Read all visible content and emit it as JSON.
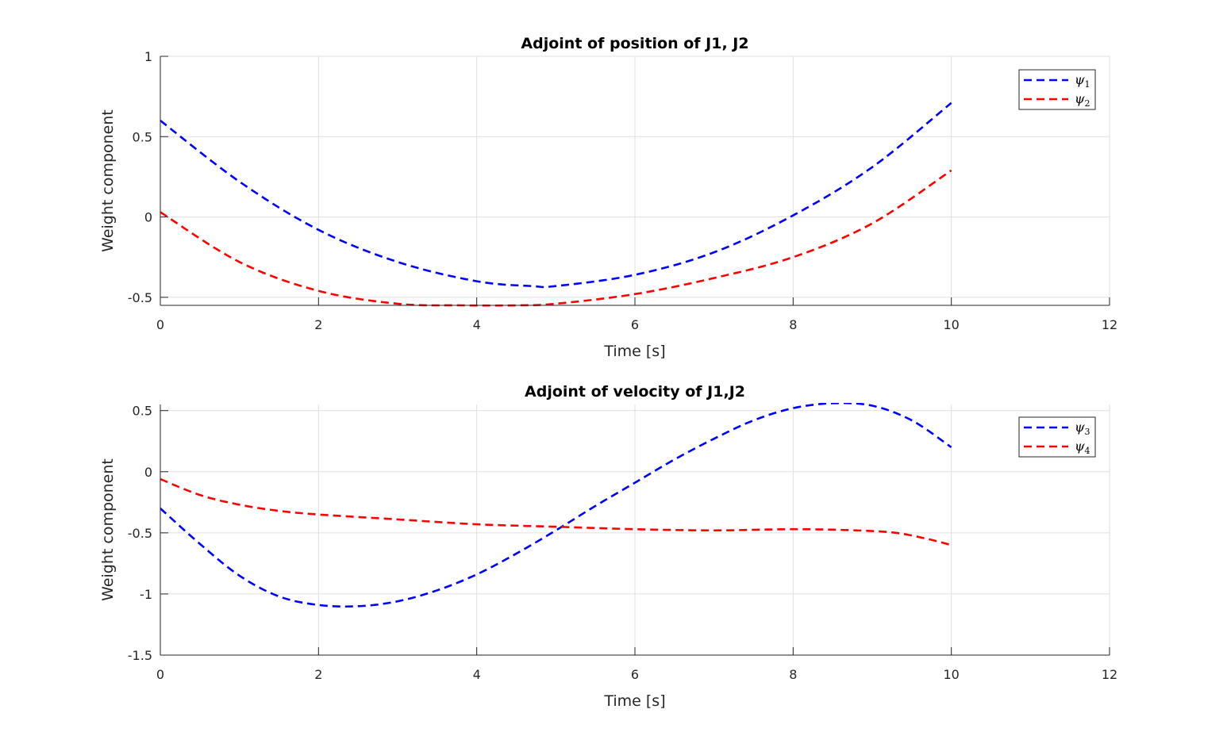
{
  "chart_data": [
    {
      "type": "line",
      "title": "Adjoint of position of J1, J2",
      "xlabel": "Time [s]",
      "ylabel": "Weight component",
      "xlim": [
        0,
        12
      ],
      "ylim": [
        -0.55,
        1
      ],
      "xticks": [
        0,
        2,
        4,
        6,
        8,
        10,
        12
      ],
      "yticks": [
        -0.5,
        0,
        0.5,
        1
      ],
      "xtick_labels": [
        "0",
        "2",
        "4",
        "6",
        "8",
        "10",
        "12"
      ],
      "ytick_labels": [
        "-0.5",
        "0",
        "0.5",
        "1"
      ],
      "grid": true,
      "legend_position": "top-right",
      "series": [
        {
          "name": "ψ1",
          "color": "#0000ff",
          "line_style": "dashed",
          "x": [
            0,
            1,
            2,
            3,
            4,
            4.7,
            5,
            6,
            7,
            8,
            9,
            10
          ],
          "y": [
            0.6,
            0.22,
            -0.08,
            -0.28,
            -0.4,
            -0.43,
            -0.43,
            -0.36,
            -0.22,
            0.01,
            0.31,
            0.71
          ]
        },
        {
          "name": "ψ2",
          "color": "#ff0000",
          "line_style": "dashed",
          "x": [
            0,
            1,
            2,
            3,
            3.8,
            4.5,
            5,
            6,
            7,
            8,
            9,
            10
          ],
          "y": [
            0.03,
            -0.28,
            -0.46,
            -0.54,
            -0.55,
            -0.55,
            -0.54,
            -0.48,
            -0.38,
            -0.25,
            -0.04,
            0.29
          ]
        }
      ]
    },
    {
      "type": "line",
      "title": "Adjoint of velocity of J1,J2",
      "xlabel": "Time [s]",
      "ylabel": "Weight component",
      "xlim": [
        0,
        12
      ],
      "ylim": [
        -1.5,
        0.55
      ],
      "xticks": [
        0,
        2,
        4,
        6,
        8,
        10,
        12
      ],
      "yticks": [
        -1.5,
        -1,
        -0.5,
        0,
        0.5
      ],
      "xtick_labels": [
        "0",
        "2",
        "4",
        "6",
        "8",
        "10",
        "12"
      ],
      "ytick_labels": [
        "-1.5",
        "-1",
        "-0.5",
        "0",
        "0.5"
      ],
      "grid": true,
      "legend_position": "top-right",
      "series": [
        {
          "name": "ψ3",
          "color": "#0000ff",
          "line_style": "dashed",
          "x": [
            0,
            0.5,
            1,
            1.5,
            2,
            2.5,
            3,
            3.5,
            4,
            4.5,
            5,
            5.5,
            6,
            6.5,
            7,
            7.5,
            8,
            8.5,
            9,
            9.5,
            10
          ],
          "y": [
            -0.3,
            -0.59,
            -0.85,
            -1.02,
            -1.09,
            -1.1,
            -1.06,
            -0.97,
            -0.84,
            -0.67,
            -0.48,
            -0.28,
            -0.09,
            0.1,
            0.27,
            0.42,
            0.52,
            0.56,
            0.54,
            0.42,
            0.2
          ]
        },
        {
          "name": "ψ4",
          "color": "#ff0000",
          "line_style": "dashed",
          "x": [
            0,
            0.5,
            1,
            1.5,
            2,
            3,
            4,
            5,
            6,
            7,
            8,
            8.8,
            9.3,
            9.7,
            10
          ],
          "y": [
            -0.06,
            -0.19,
            -0.27,
            -0.32,
            -0.35,
            -0.39,
            -0.43,
            -0.45,
            -0.47,
            -0.48,
            -0.47,
            -0.48,
            -0.5,
            -0.55,
            -0.6
          ]
        }
      ]
    }
  ]
}
